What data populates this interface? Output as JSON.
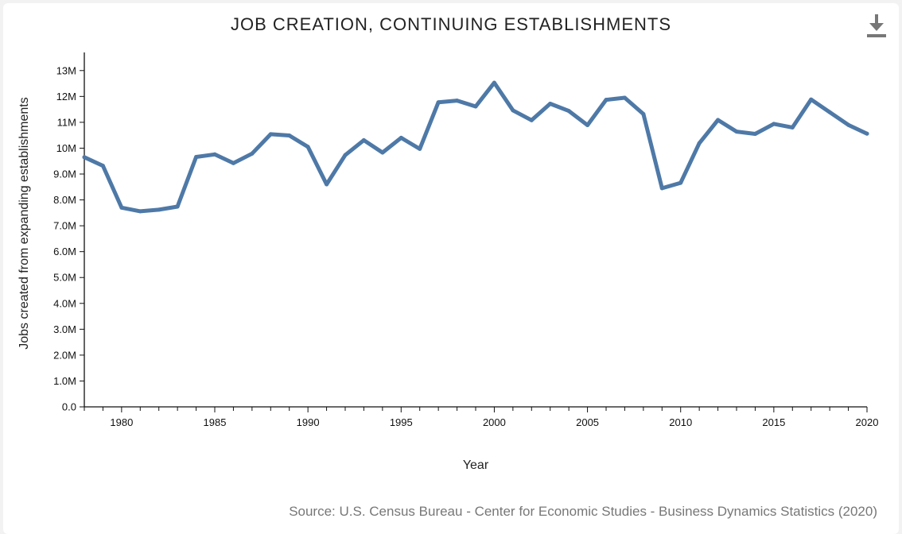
{
  "chart_data": {
    "type": "line",
    "title": "JOB CREATION, CONTINUING ESTABLISHMENTS",
    "xlabel": "Year",
    "ylabel": "Jobs created from expanding establishments",
    "xlim": [
      1978,
      2020
    ],
    "ylim": [
      0,
      13700000
    ],
    "x_tick_labels": [
      "1980",
      "1985",
      "1990",
      "1995",
      "2000",
      "2005",
      "2010",
      "2015",
      "2020"
    ],
    "y_tick_labels": [
      "0.0",
      "1.0M",
      "2.0M",
      "3.0M",
      "4.0M",
      "5.0M",
      "6.0M",
      "7.0M",
      "8.0M",
      "9.0M",
      "10M",
      "11M",
      "12M",
      "13M"
    ],
    "series": [
      {
        "name": "Jobs created from expanding establishments",
        "color": "#4e79a7",
        "x": [
          1978,
          1979,
          1980,
          1981,
          1982,
          1983,
          1984,
          1985,
          1986,
          1987,
          1988,
          1989,
          1990,
          1991,
          1992,
          1993,
          1994,
          1995,
          1996,
          1997,
          1998,
          1999,
          2000,
          2001,
          2002,
          2003,
          2004,
          2005,
          2006,
          2007,
          2008,
          2009,
          2010,
          2011,
          2012,
          2013,
          2014,
          2015,
          2016,
          2017,
          2018,
          2019,
          2020
        ],
        "values": [
          9650000,
          9320000,
          7700000,
          7560000,
          7620000,
          7740000,
          9660000,
          9760000,
          9420000,
          9790000,
          10540000,
          10490000,
          10050000,
          8600000,
          9730000,
          10310000,
          9830000,
          10400000,
          9970000,
          11770000,
          11840000,
          11610000,
          12530000,
          11460000,
          11080000,
          11720000,
          11440000,
          10890000,
          11870000,
          11950000,
          11320000,
          8450000,
          8660000,
          10190000,
          11090000,
          10640000,
          10550000,
          10940000,
          10800000,
          11880000,
          11390000,
          10900000,
          10560000
        ]
      }
    ]
  },
  "source": "Source: U.S. Census Bureau - Center for Economic Studies - Business Dynamics Statistics (2020)",
  "download_icon": "download-icon"
}
